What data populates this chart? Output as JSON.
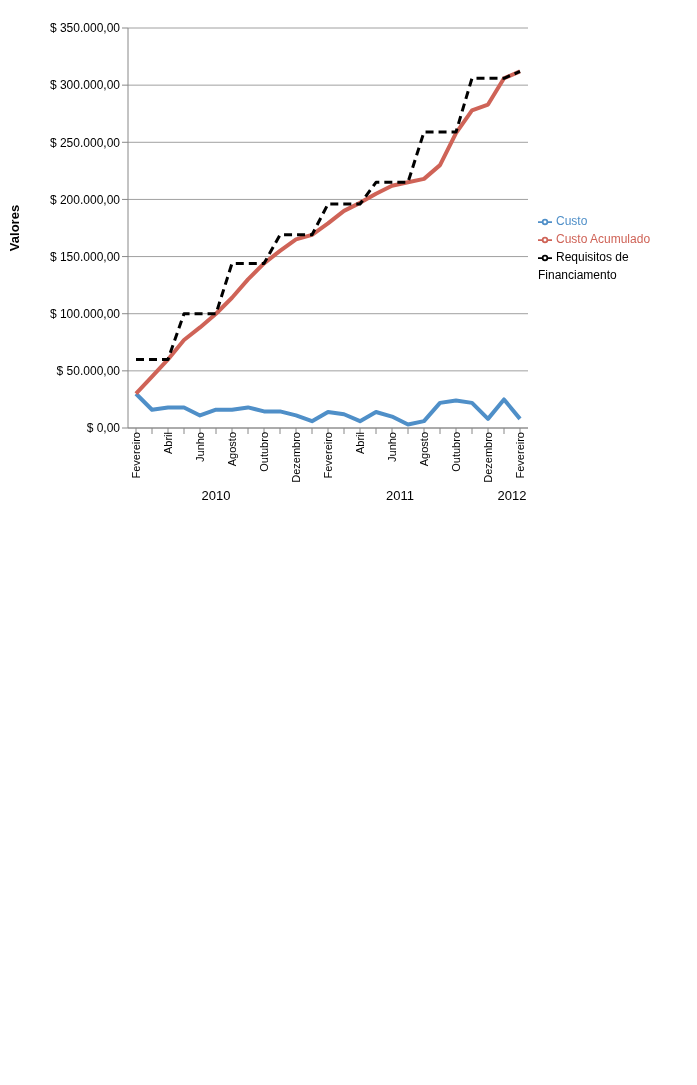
{
  "chart_data": {
    "type": "line",
    "ylabel": "Valores",
    "categories": [
      "Fevereiro",
      null,
      "Abril",
      null,
      "Junho",
      null,
      "Agosto",
      null,
      "Outubro",
      null,
      "Dezembro",
      null,
      "Fevereiro",
      null,
      "Abril",
      null,
      "Junho",
      null,
      "Agosto",
      null,
      "Outubro",
      null,
      "Dezembro",
      null,
      "Fevereiro"
    ],
    "annotations": [
      "2010",
      "2011",
      "2012"
    ],
    "series": [
      {
        "name": "Custo",
        "color": "#4f8fc8",
        "values": [
          30000,
          16000,
          18000,
          18000,
          11000,
          16000,
          16000,
          18000,
          14500,
          14500,
          11000,
          6000,
          14000,
          12000,
          6000,
          14000,
          10000,
          3000,
          6000,
          22000,
          24000,
          22000,
          8000,
          25000,
          8000
        ]
      },
      {
        "name": "Custo Acumulado",
        "color": "#cf6357",
        "values": [
          30000,
          45000,
          60000,
          77000,
          88000,
          100000,
          114000,
          130000,
          144000,
          155000,
          165000,
          169000,
          179000,
          190000,
          197000,
          205000,
          212000,
          215000,
          218000,
          230000,
          258000,
          278000,
          283000,
          306000,
          312000
        ]
      },
      {
        "name": "Requisitos de Financiamento",
        "color": "#000000",
        "line_style": "dashed",
        "values": [
          60000,
          60000,
          60000,
          100000,
          100000,
          100000,
          144000,
          144000,
          144000,
          169000,
          169000,
          169000,
          196000,
          196000,
          196000,
          215000,
          215000,
          215000,
          259000,
          259000,
          259000,
          306000,
          306000,
          306000,
          312000
        ]
      }
    ],
    "ylim": [
      0,
      350000
    ],
    "yticks": [
      {
        "value": 0,
        "label": "$ 0,00"
      },
      {
        "value": 50000,
        "label": "$ 50.000,00"
      },
      {
        "value": 100000,
        "label": "$ 100.000,00"
      },
      {
        "value": 150000,
        "label": "$ 150.000,00"
      },
      {
        "value": 200000,
        "label": "$ 200.000,00"
      },
      {
        "value": 250000,
        "label": "$ 250.000,00"
      },
      {
        "value": 300000,
        "label": "$ 300.000,00"
      },
      {
        "value": 350000,
        "label": "$ 350.000,00"
      }
    ],
    "grid": "y",
    "legend": "right",
    "marker": "none"
  }
}
